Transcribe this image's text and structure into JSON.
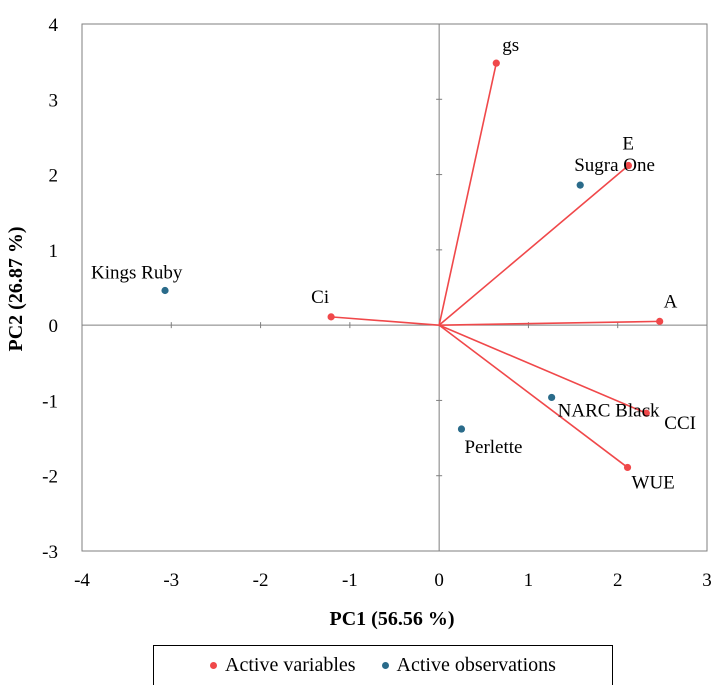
{
  "chart_data": {
    "type": "scatter",
    "subtype": "biplot",
    "xlabel": "PC1 (56.56 %)",
    "ylabel": "PC2 (26.87 %)",
    "xlim": [
      -4,
      3
    ],
    "ylim": [
      -3,
      4
    ],
    "xticks": [
      -4,
      -3,
      -2,
      -1,
      0,
      1,
      2,
      3
    ],
    "yticks": [
      -3,
      -2,
      -1,
      0,
      1,
      2,
      3,
      4
    ],
    "grid": false,
    "legend_position": "bottom",
    "colors": {
      "variables": "#f0484a",
      "observations": "#2a6b8a"
    },
    "series": [
      {
        "name": "Active variables",
        "points": [
          {
            "label": "gs",
            "x": 0.64,
            "y": 3.48
          },
          {
            "label": "E",
            "x": 2.12,
            "y": 2.12
          },
          {
            "label": "A",
            "x": 2.47,
            "y": 0.05
          },
          {
            "label": "Ci",
            "x": -1.21,
            "y": 0.11
          },
          {
            "label": "CCI",
            "x": 2.32,
            "y": -1.17
          },
          {
            "label": "WUE",
            "x": 2.11,
            "y": -1.89
          }
        ]
      },
      {
        "name": "Active observations",
        "points": [
          {
            "label": "Sugra One",
            "x": 1.58,
            "y": 1.86
          },
          {
            "label": "Kings Ruby",
            "x": -3.07,
            "y": 0.46
          },
          {
            "label": "NARC Black",
            "x": 1.26,
            "y": -0.96
          },
          {
            "label": "Perlette",
            "x": 0.25,
            "y": -1.38
          }
        ]
      }
    ]
  }
}
